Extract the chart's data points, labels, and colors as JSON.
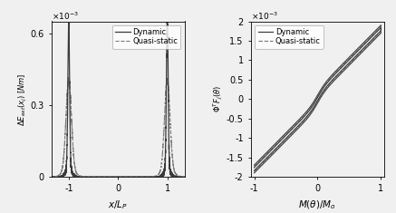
{
  "left_xlabel": "$x/L_P$",
  "left_ylabel": "$\\Delta E_{ext}(x_j)\\;[Nm]$",
  "left_ylim": [
    0,
    0.00065
  ],
  "left_xlim": [
    -1.35,
    1.35
  ],
  "left_yticks": [
    0,
    0.0003,
    0.0006
  ],
  "left_ytick_labels": [
    "0",
    "0.3",
    "0.6"
  ],
  "left_xticks": [
    -1,
    0,
    1
  ],
  "right_xlabel": "$M(\\theta)/M_o$",
  "right_ylabel": "$\\Phi^T F_j(\\theta)$",
  "right_ylim": [
    -0.002,
    0.002
  ],
  "right_xlim": [
    -1.05,
    1.05
  ],
  "right_yticks": [
    -0.002,
    -0.0015,
    -0.001,
    -0.0005,
    0,
    0.0005,
    0.001,
    0.0015,
    0.002
  ],
  "right_ytick_labels": [
    "-2",
    "-1.5",
    "-1",
    "-0.5",
    "0",
    "0.5",
    "1",
    "1.5",
    "2"
  ],
  "right_xticks": [
    -1,
    0,
    1
  ],
  "legend_dynamic": "Dynamic",
  "legend_quasi": "Quasi-static",
  "color_dynamic": "#3a3a3a",
  "color_quasi": "#7a7a7a",
  "bg_color": "#f0f0f0"
}
